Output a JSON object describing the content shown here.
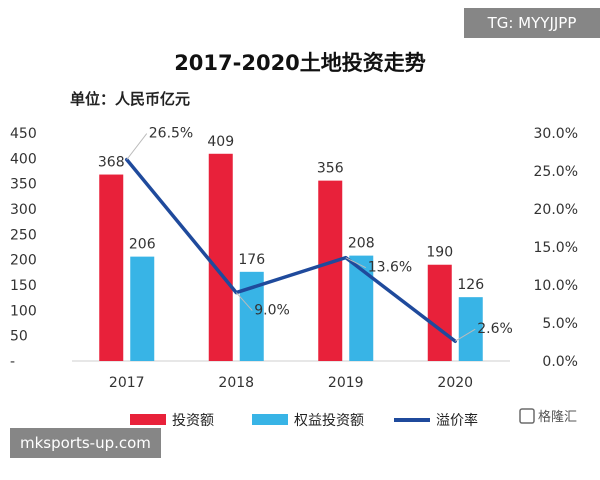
{
  "chart_data": {
    "type": "bar",
    "title": "2017-2020土地投资走势",
    "subtitle": "单位：人民币亿元",
    "categories": [
      "2017",
      "2018",
      "2019",
      "2020"
    ],
    "series": [
      {
        "name": "投资额",
        "kind": "bar",
        "axis": "left",
        "color": "#e8213a",
        "values": [
          368,
          409,
          356,
          190
        ]
      },
      {
        "name": "权益投资额",
        "kind": "bar",
        "axis": "left",
        "color": "#38b4e6",
        "values": [
          206,
          176,
          208,
          126
        ]
      },
      {
        "name": "溢价率",
        "kind": "line",
        "axis": "right",
        "color": "#1f4a9c",
        "values": [
          26.5,
          9.0,
          13.6,
          2.6
        ]
      }
    ],
    "bar_labels": {
      "投资额": [
        "368",
        "409",
        "356",
        "190"
      ],
      "权益投资额": [
        "206",
        "176",
        "208",
        "126"
      ]
    },
    "line_labels": [
      "26.5%",
      "9.0%",
      "13.6%",
      "2.6%"
    ],
    "left_axis": {
      "min": 0,
      "max": 450,
      "ticks": [
        "-",
        "50",
        "100",
        "150",
        "200",
        "250",
        "300",
        "350",
        "400",
        "450"
      ]
    },
    "right_axis": {
      "min": 0,
      "max": 30,
      "ticks": [
        "0.0%",
        "5.0%",
        "10.0%",
        "15.0%",
        "20.0%",
        "25.0%",
        "30.0%"
      ]
    },
    "grid": false,
    "legend_position": "bottom"
  },
  "overlays": {
    "tg": "TG: MYYJJPP",
    "site": "mksports-up.com",
    "watermark": "格隆汇"
  }
}
